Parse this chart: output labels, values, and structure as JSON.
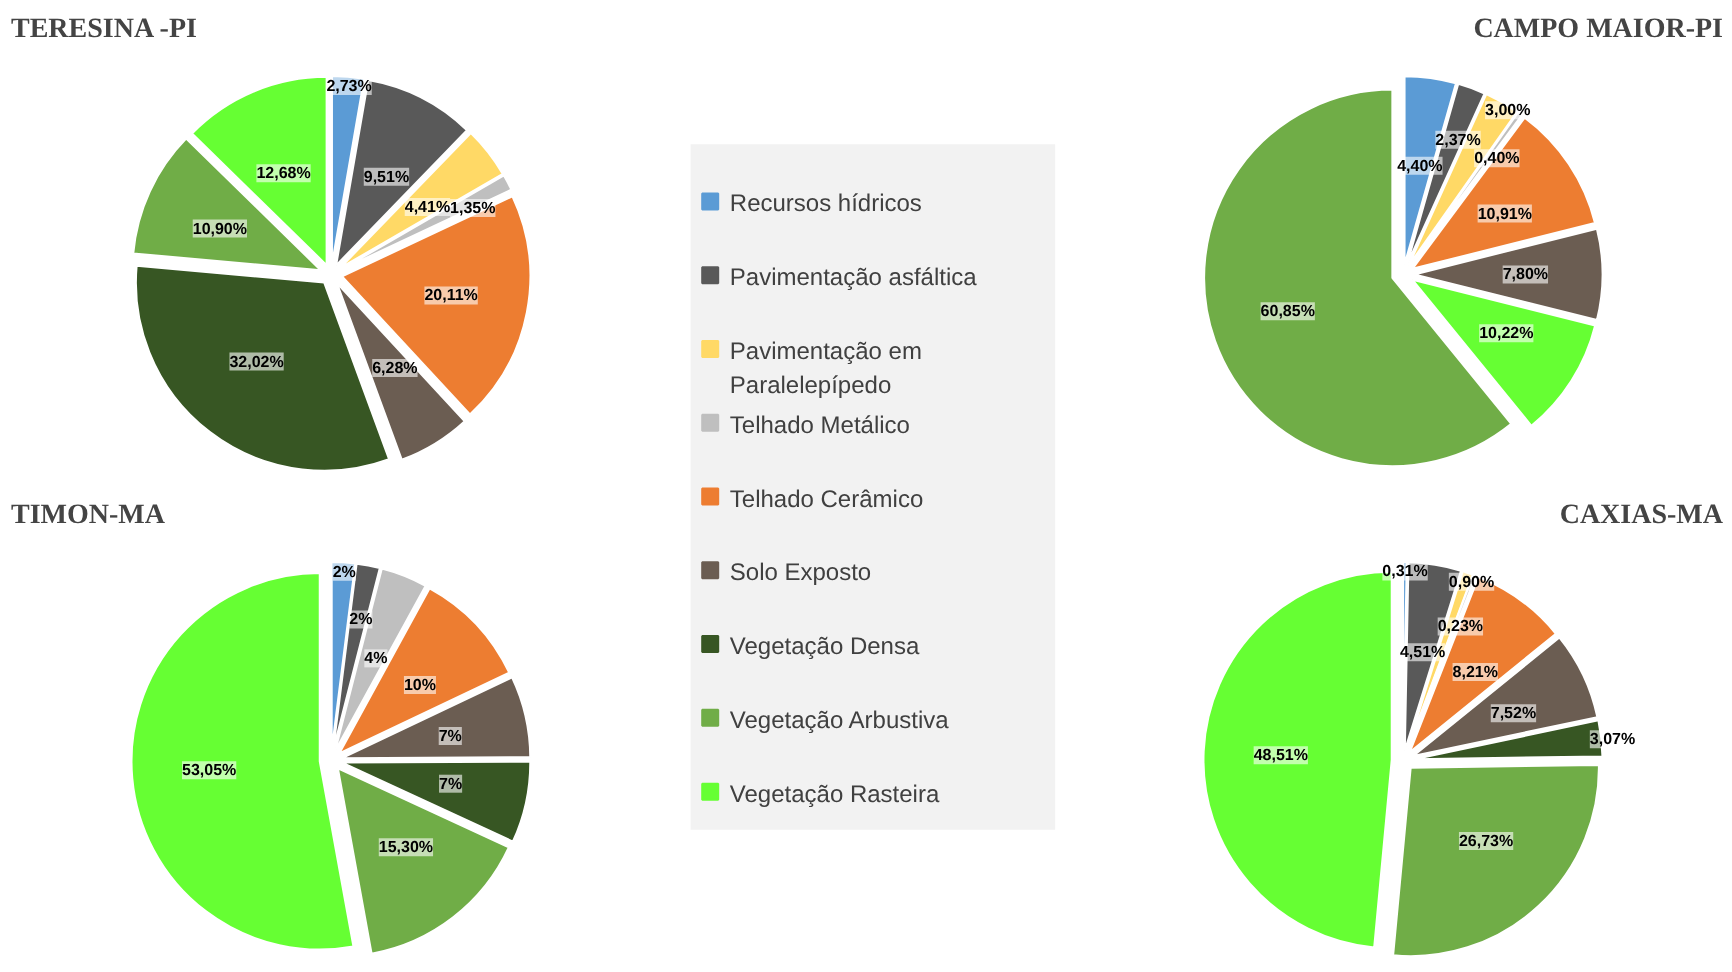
{
  "chart_data": [
    {
      "type": "pie",
      "title": "TERESINA -PI",
      "legend": "right",
      "categories": [
        "Recursos hídricos",
        "Pavimentação asfáltica",
        "Pavimentação em Paralelepípedo",
        "Telhado Metálico",
        "Telhado Cerâmico",
        "Solo Exposto",
        "Vegetação Densa",
        "Vegetação Arbustiva",
        "Vegetação Rasteira"
      ],
      "values": [
        2.73,
        9.51,
        4.41,
        1.35,
        20.11,
        6.28,
        32.02,
        10.9,
        12.68
      ],
      "value_labels": [
        "2,73%",
        "9,51%",
        "4,41%",
        "1,35%",
        "20,11%",
        "6,28%",
        "32,02%",
        "10,90%",
        "12,68%"
      ],
      "colors": [
        "#5b9bd5",
        "#595959",
        "#ffd966",
        "#bfbfbf",
        "#ed7d31",
        "#6b5d52",
        "#375623",
        "#70ad47",
        "#66ff33"
      ]
    },
    {
      "type": "pie",
      "title": "CAMPO MAIOR-PI",
      "categories": [
        null,
        null,
        null,
        null,
        null,
        null,
        null,
        null
      ],
      "values": [
        4.4,
        2.37,
        3.0,
        0.4,
        10.91,
        7.8,
        10.22,
        60.85
      ],
      "value_labels": [
        "4,40%",
        "2,37%",
        "3,00%",
        "0,40%",
        "10,91%",
        "7,80%",
        "10,22%",
        "60,85%"
      ],
      "colors": [
        "#5b9bd5",
        "#595959",
        "#ffd966",
        "#bfbfbf",
        "#ed7d31",
        "#6b5d52",
        "#66ff33",
        "#70ad47"
      ]
    },
    {
      "type": "pie",
      "title": "TIMON-MA",
      "categories": [
        null,
        null,
        null,
        null,
        null,
        null,
        null,
        null
      ],
      "values": [
        2,
        2,
        4,
        10,
        7,
        7,
        15.3,
        53.05
      ],
      "value_labels": [
        "2%",
        "2%",
        "4%",
        "10%",
        "7%",
        "7%",
        "15,30%",
        "53,05%"
      ],
      "colors": [
        "#5b9bd5",
        "#595959",
        "#bfbfbf",
        "#ed7d31",
        "#6b5d52",
        "#375623",
        "#70ad47",
        "#66ff33"
      ]
    },
    {
      "type": "pie",
      "title": "CAXIAS-MA",
      "categories": [
        null,
        null,
        null,
        null,
        null,
        null,
        null,
        null,
        null
      ],
      "values": [
        0.31,
        4.51,
        0.9,
        0.23,
        8.21,
        7.52,
        3.07,
        26.73,
        48.51
      ],
      "value_labels": [
        "0,31%",
        "4,51%",
        "0,90%",
        "0,23%",
        "8,21%",
        "7,52%",
        "3,07%",
        "26,73%",
        "48,51%"
      ],
      "colors": [
        "#5b9bd5",
        "#595959",
        "#ffd966",
        "#bfbfbf",
        "#ed7d31",
        "#6b5d52",
        "#375623",
        "#70ad47",
        "#66ff33"
      ]
    }
  ]
}
